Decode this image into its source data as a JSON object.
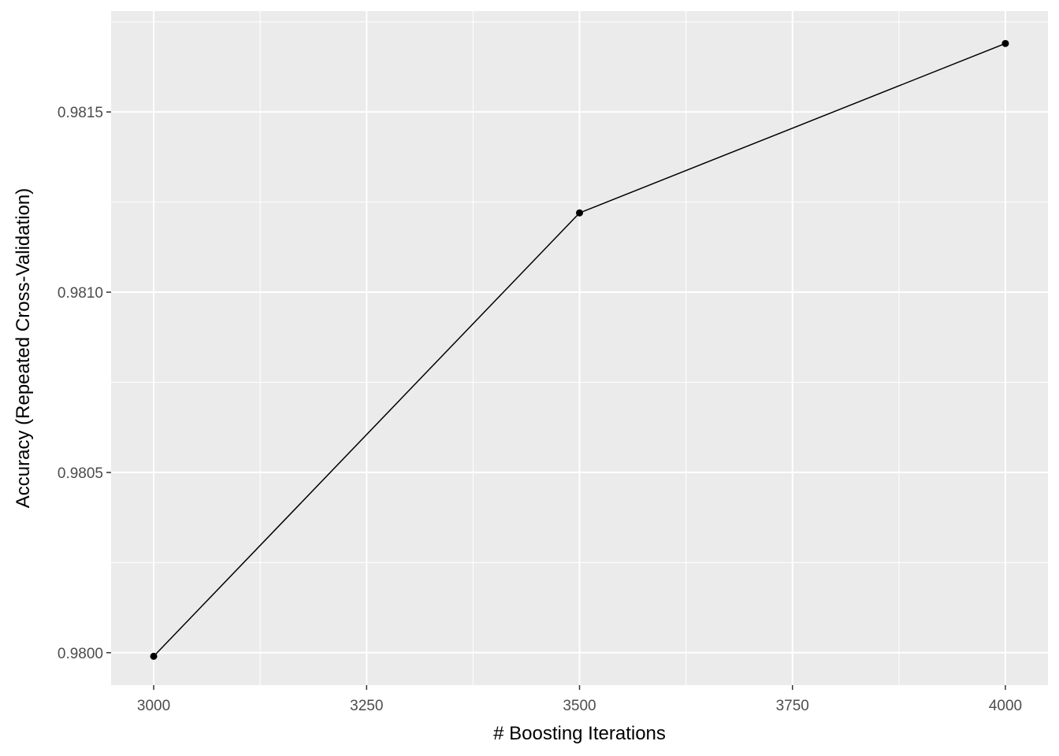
{
  "chart_data": {
    "type": "line",
    "title": "",
    "xlabel": "# Boosting Iterations",
    "ylabel": "Accuracy (Repeated Cross-Validation)",
    "x": [
      3000,
      3500,
      4000
    ],
    "series": [
      {
        "values": [
          0.97999,
          0.98122,
          0.98169
        ]
      }
    ],
    "xlim": [
      2950,
      4050
    ],
    "ylim": [
      0.97991,
      0.98178
    ],
    "xticks": [
      3000,
      3250,
      3500,
      3750,
      4000
    ],
    "xtick_labels": [
      "3000",
      "3250",
      "3500",
      "3750",
      "4000"
    ],
    "yticks": [
      0.98,
      0.9805,
      0.981,
      0.9815
    ],
    "ytick_labels": [
      "0.9800",
      "0.9805",
      "0.9810",
      "0.9815"
    ],
    "grid": true,
    "legend": "none",
    "colors": {
      "panel": "#ebebeb",
      "grid": "#ffffff",
      "line": "#000000",
      "point": "#000000",
      "tick_text": "#4d4d4d",
      "axis_title": "#000000"
    }
  }
}
